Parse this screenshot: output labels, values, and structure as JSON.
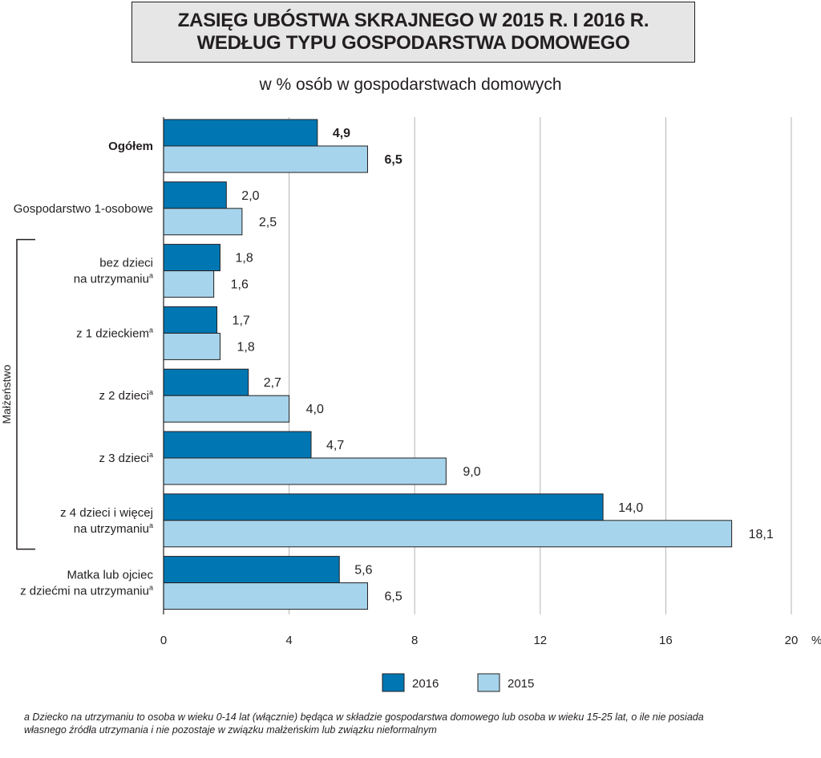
{
  "chart_data": {
    "type": "bar",
    "orientation": "horizontal",
    "title_lines": [
      "ZASIĘG UBÓSTWA SKRAJNEGO W 2015 R. I 2016 R.",
      "WEDŁUG TYPU GOSPODARSTWA DOMOWEGO"
    ],
    "subtitle": "w % osób w gospodarstwach domowych",
    "categories": [
      {
        "lines": [
          "Ogółem"
        ],
        "bold": true,
        "sup": false
      },
      {
        "lines": [
          "Gospodarstwo 1-osobowe"
        ],
        "bold": false,
        "sup": false
      },
      {
        "lines": [
          "bez dzieci",
          "na utrzymaniu"
        ],
        "bold": false,
        "sup": true
      },
      {
        "lines": [
          "z 1 dzieckiem"
        ],
        "bold": false,
        "sup": true
      },
      {
        "lines": [
          "z 2 dzieci"
        ],
        "bold": false,
        "sup": true
      },
      {
        "lines": [
          "z 3 dzieci"
        ],
        "bold": false,
        "sup": true
      },
      {
        "lines": [
          "z 4 dzieci i więcej",
          "na utrzymaniu"
        ],
        "bold": false,
        "sup": true
      },
      {
        "lines": [
          "Matka lub ojciec",
          "z dziećmi na utrzymaniu"
        ],
        "bold": false,
        "sup": true
      }
    ],
    "footnote_marker": "a",
    "series": [
      {
        "name": "2016",
        "color": "#0077b3",
        "values": [
          4.9,
          2.0,
          1.8,
          1.7,
          2.7,
          4.7,
          14.0,
          5.6
        ],
        "labels": [
          "4,9",
          "2,0",
          "1,8",
          "1,7",
          "2,7",
          "4,7",
          "14,0",
          "5,6"
        ]
      },
      {
        "name": "2015",
        "color": "#a6d4ec",
        "values": [
          6.5,
          2.5,
          1.6,
          1.8,
          4.0,
          9.0,
          18.1,
          6.5
        ],
        "labels": [
          "6,5",
          "2,5",
          "1,6",
          "1,8",
          "4,0",
          "9,0",
          "18,1",
          "6,5"
        ]
      }
    ],
    "xlim": [
      0,
      20
    ],
    "xticks": [
      0,
      4,
      8,
      12,
      16,
      20
    ],
    "xtick_labels": [
      "0",
      "4",
      "8",
      "12",
      "16",
      "20"
    ],
    "x_unit": "%",
    "bracket_label": "Małżeństwo",
    "bracket_categories": [
      2,
      6
    ],
    "grid": true,
    "legend_position": "bottom-center"
  },
  "footnote": {
    "line1": "a Dziecko na utrzymaniu to osoba w wieku 0-14 lat (włącznie) będąca w składzie gospodarstwa domowego lub osoba w wieku 15-25 lat, o ile nie posiada",
    "line2": "własnego źródła utrzymania i nie pozostaje w związku małżeńskim lub związku nieformalnym"
  }
}
